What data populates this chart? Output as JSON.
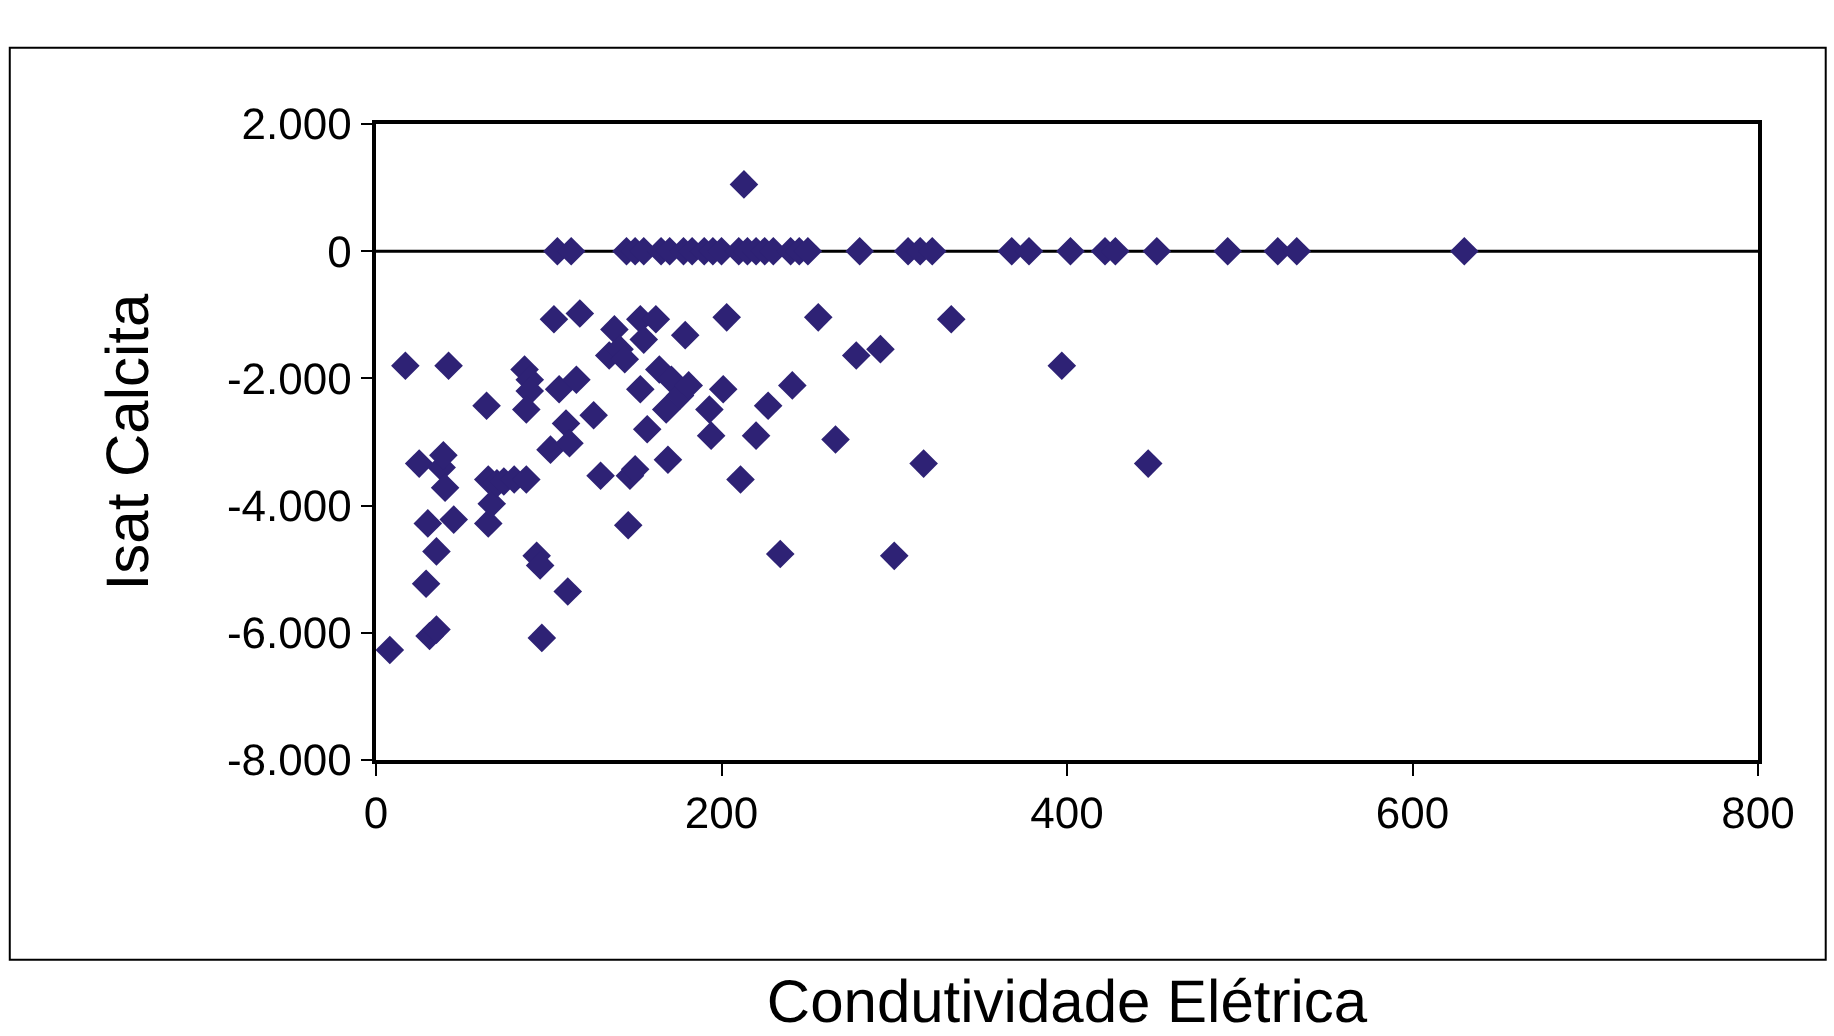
{
  "chart_data": {
    "type": "scatter",
    "xlabel": "Condutividade Elétrica",
    "ylabel": "Isat Calcita",
    "xlim": [
      0,
      800
    ],
    "xticks": [
      0,
      200,
      400,
      600,
      800
    ],
    "ylim": [
      -8000,
      2000
    ],
    "yticks": [
      {
        "value": 2000,
        "label": "2.000"
      },
      {
        "value": 0,
        "label": "0"
      },
      {
        "value": -2000,
        "label": "-2.000"
      },
      {
        "value": -4000,
        "label": "-4.000"
      },
      {
        "value": -6000,
        "label": "-6.000"
      },
      {
        "value": -8000,
        "label": "-8.000"
      }
    ],
    "grid": false,
    "marker": "diamond",
    "ref_lines": [
      {
        "axis": "y",
        "value": 0,
        "color": "#000000"
      }
    ],
    "series": [
      {
        "color": "#2e2275",
        "x": [
          105,
          113,
          145,
          150,
          155,
          165,
          170,
          178,
          183,
          190,
          195,
          200,
          210,
          215,
          220,
          225,
          230,
          240,
          245,
          250,
          280,
          308,
          315,
          322,
          368,
          378,
          402,
          422,
          428,
          452,
          493,
          522,
          533,
          630,
          213,
          8,
          17,
          25,
          29,
          30,
          31,
          35,
          35,
          38,
          39,
          40,
          42,
          45,
          64,
          65,
          65,
          67,
          70,
          74,
          80,
          86,
          87,
          89,
          89,
          87,
          96,
          93,
          95,
          101,
          103,
          106,
          110,
          112,
          111,
          116,
          118,
          126,
          130,
          135,
          138,
          141,
          144,
          146,
          147,
          150,
          153,
          153,
          155,
          157,
          162,
          164,
          168,
          169,
          171,
          176,
          179,
          181,
          193,
          194,
          203,
          201,
          211,
          220,
          227,
          234,
          241,
          256,
          266,
          278,
          292,
          300,
          317,
          333,
          397,
          447
        ],
        "values": [
          0,
          0,
          0,
          0,
          0,
          0,
          0,
          0,
          0,
          0,
          0,
          0,
          0,
          0,
          0,
          0,
          0,
          0,
          0,
          0,
          0,
          0,
          0,
          0,
          0,
          0,
          0,
          0,
          0,
          0,
          0,
          0,
          0,
          0,
          1050,
          -6270,
          -1800,
          -3340,
          -5230,
          -4280,
          -6050,
          -5950,
          -4720,
          -3400,
          -3210,
          -3720,
          -1800,
          -4220,
          -2430,
          -4280,
          -3590,
          -3970,
          -3650,
          -3620,
          -3590,
          -1860,
          -3590,
          -2020,
          -2200,
          -2490,
          -6080,
          -4790,
          -4940,
          -3120,
          -1070,
          -2170,
          -2710,
          -3020,
          -5350,
          -2020,
          -980,
          -2580,
          -3530,
          -1640,
          -1230,
          -1540,
          -1700,
          -4310,
          -3530,
          -3430,
          -1070,
          -2170,
          -1390,
          -2800,
          -1070,
          -1860,
          -2490,
          -3280,
          -2020,
          -2270,
          -1320,
          -2110,
          -2490,
          -2900,
          -1040,
          -2170,
          -3590,
          -2900,
          -2430,
          -4760,
          -2110,
          -1040,
          -2960,
          -1640,
          -1540,
          -4790,
          -3340,
          -1070,
          -1800,
          -3340
        ]
      }
    ]
  }
}
